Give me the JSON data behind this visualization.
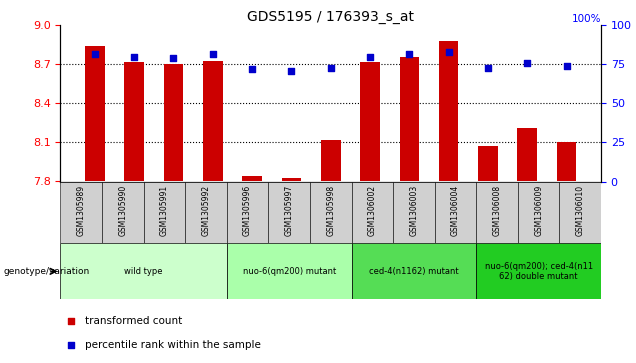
{
  "title": "GDS5195 / 176393_s_at",
  "samples": [
    "GSM1305989",
    "GSM1305990",
    "GSM1305991",
    "GSM1305992",
    "GSM1305996",
    "GSM1305997",
    "GSM1305998",
    "GSM1306002",
    "GSM1306003",
    "GSM1306004",
    "GSM1306008",
    "GSM1306009",
    "GSM1306010"
  ],
  "bar_values": [
    8.84,
    8.72,
    8.7,
    8.73,
    7.84,
    7.83,
    8.12,
    8.72,
    8.76,
    8.88,
    8.07,
    8.21,
    8.1
  ],
  "percentile_values": [
    82,
    80,
    79,
    82,
    72,
    71,
    73,
    80,
    82,
    83,
    73,
    76,
    74
  ],
  "y_min": 7.8,
  "y_max": 9.0,
  "y_ticks_left": [
    7.8,
    8.1,
    8.4,
    8.7,
    9.0
  ],
  "y_ticks_right": [
    0,
    25,
    50,
    75,
    100
  ],
  "bar_color": "#cc0000",
  "percentile_color": "#0000cc",
  "groups": [
    {
      "label": "wild type",
      "indices": [
        0,
        1,
        2,
        3
      ],
      "color": "#ccffcc"
    },
    {
      "label": "nuo-6(qm200) mutant",
      "indices": [
        4,
        5,
        6
      ],
      "color": "#aaffaa"
    },
    {
      "label": "ced-4(n1162) mutant",
      "indices": [
        7,
        8,
        9
      ],
      "color": "#55dd55"
    },
    {
      "label": "nuo-6(qm200); ced-4(n11\n62) double mutant",
      "indices": [
        10,
        11,
        12
      ],
      "color": "#22cc22"
    }
  ],
  "bar_width": 0.5,
  "legend_bar_label": "transformed count",
  "legend_pct_label": "percentile rank within the sample",
  "genotype_label": "genotype/variation"
}
